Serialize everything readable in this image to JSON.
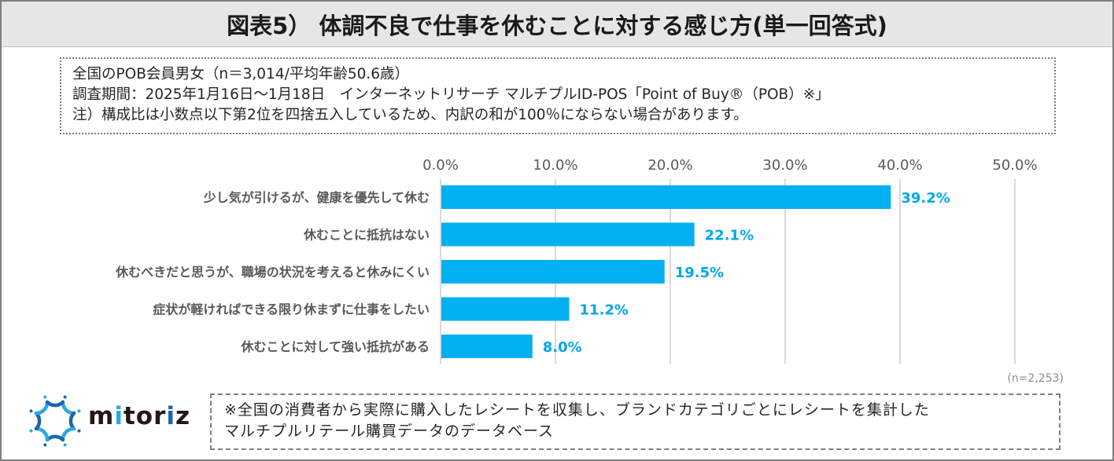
{
  "title": "図表5） 体調不良で仕事を休むことに対する感じ方(単一回答式)",
  "info": {
    "lines": [
      "全国のPOB会員男女（n＝3,014/平均年齢50.6歳）",
      "調査期間：2025年1月16日～1月18日　インターネットリサーチ マルチプルID-POS「Point of Buy®（POB）※」",
      "注）構成比は小数点以下第2位を四捨五入しているため、内訳の和が100％にならない場合があります。"
    ]
  },
  "chart_data": {
    "type": "bar",
    "orientation": "horizontal",
    "title": "体調不良で仕事を休むことに対する感じ方(単一回答式)",
    "categories": [
      "少し気が引けるが、健康を優先して休む",
      "休むことに抵抗はない",
      "休むべきだと思うが、職場の状況を考えると休みにくい",
      "症状が軽ければできる限り休まずに仕事をしたい",
      "休むことに対して強い抵抗がある"
    ],
    "values": [
      39.2,
      22.1,
      19.5,
      11.2,
      8.0
    ],
    "value_labels": [
      "39.2%",
      "22.1%",
      "19.5%",
      "11.2%",
      "8.0%"
    ],
    "xlim": [
      0,
      50
    ],
    "ticks": [
      0,
      10,
      20,
      30,
      40,
      50
    ],
    "tick_labels": [
      "0.0%",
      "10.0%",
      "20.0%",
      "30.0%",
      "40.0%",
      "50.0%"
    ],
    "axis_position": "top",
    "grid": true,
    "xlabel": "",
    "ylabel": "",
    "bar_color": "#00b0f0",
    "label_color": "#00a8e6",
    "n_note": "(n=2,253)"
  },
  "logo": {
    "text_parts": [
      "m",
      "i",
      "tor",
      "i",
      "z"
    ],
    "light_blue": "#29a9e1",
    "dark_blue": "#1e64aa"
  },
  "footnote": {
    "lines": [
      "※全国の消費者から実際に購入したレシートを収集し、ブランドカテゴリごとにレシートを集計した",
      "マルチプルリテール購買データのデータベース"
    ]
  }
}
